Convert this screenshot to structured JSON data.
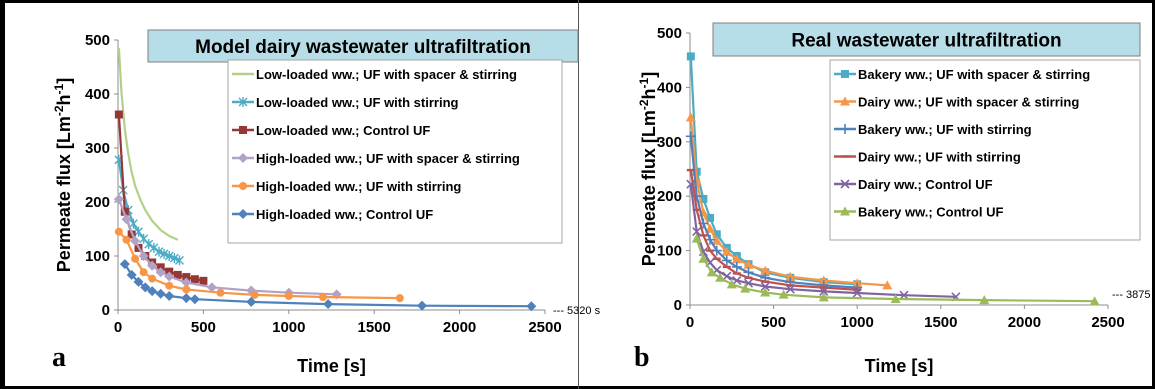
{
  "chart_data": [
    {
      "type": "line",
      "panel_letter": "a",
      "title": "Model dairy wastewater ultrafiltration",
      "xlabel": "Time [s]",
      "ylabel": "Permeate flux [Lm-2h-1]",
      "xlim": [
        0,
        2500
      ],
      "ylim": [
        0,
        500
      ],
      "xticks": [
        "0",
        "500",
        "1000",
        "1500",
        "2000",
        "2500"
      ],
      "yticks": [
        "0",
        "100",
        "200",
        "300",
        "400",
        "500"
      ],
      "annotation": "--- 5320 s",
      "legend_position": "top-right",
      "grid": false,
      "series": [
        {
          "name": "Low-loaded ww.; UF with spacer & stirring",
          "color": "#b2d08a",
          "marker": "none",
          "x": [
            5,
            20,
            40,
            60,
            80,
            100,
            130,
            160,
            200,
            250,
            300,
            350
          ],
          "y": [
            485,
            405,
            335,
            290,
            255,
            230,
            205,
            185,
            165,
            148,
            137,
            130
          ]
        },
        {
          "name": "Low-loaded ww.; UF with stirring",
          "color": "#4bacc6",
          "marker": "asterisk",
          "x": [
            5,
            30,
            60,
            90,
            120,
            150,
            180,
            210,
            240,
            270,
            300,
            330,
            360
          ],
          "y": [
            278,
            222,
            185,
            160,
            145,
            132,
            122,
            115,
            108,
            104,
            100,
            96,
            92
          ]
        },
        {
          "name": "Low-loaded ww.; Control UF",
          "color": "#953735",
          "marker": "square",
          "x": [
            5,
            40,
            80,
            120,
            160,
            200,
            250,
            300,
            350,
            400,
            450,
            500
          ],
          "y": [
            362,
            182,
            140,
            115,
            100,
            88,
            79,
            71,
            65,
            61,
            57,
            54
          ]
        },
        {
          "name": "High-loaded ww.; UF with spacer & stirring",
          "color": "#b3a2c7",
          "marker": "diamond",
          "x": [
            5,
            50,
            100,
            150,
            200,
            250,
            300,
            400,
            550,
            780,
            1000,
            1280
          ],
          "y": [
            205,
            168,
            128,
            100,
            82,
            70,
            62,
            51,
            42,
            36,
            32,
            29
          ]
        },
        {
          "name": "High-loaded ww.; UF with stirring",
          "color": "#f79646",
          "marker": "circle",
          "x": [
            5,
            50,
            100,
            150,
            200,
            300,
            400,
            600,
            800,
            1000,
            1200,
            1650
          ],
          "y": [
            145,
            130,
            95,
            70,
            58,
            45,
            38,
            32,
            28,
            26,
            24,
            22
          ]
        },
        {
          "name": "High-loaded ww.; Control UF",
          "color": "#4f81bd",
          "marker": "diamond",
          "x": [
            40,
            80,
            120,
            160,
            200,
            250,
            300,
            400,
            450,
            780,
            1230,
            1780,
            2420
          ],
          "y": [
            85,
            65,
            52,
            42,
            35,
            30,
            26,
            22,
            20,
            15,
            11,
            8,
            7
          ]
        }
      ]
    },
    {
      "type": "line",
      "panel_letter": "b",
      "title": "Real wastewater ultrafiltration",
      "xlabel": "Time [s]",
      "ylabel": "Permeate flux [Lm-2h-1]",
      "xlim": [
        0,
        2500
      ],
      "ylim": [
        0,
        500
      ],
      "xticks": [
        "0",
        "500",
        "1000",
        "1500",
        "2000",
        "2500"
      ],
      "yticks": [
        "0",
        "100",
        "200",
        "300",
        "400",
        "500"
      ],
      "annotation": "--- 3875 s",
      "legend_position": "top-right",
      "grid": false,
      "series": [
        {
          "name": "Bakery ww.; UF with spacer & stirring",
          "color": "#4bacc6",
          "marker": "square",
          "x": [
            5,
            40,
            80,
            120,
            160,
            220,
            280,
            350,
            450,
            600,
            800,
            1000
          ],
          "y": [
            457,
            245,
            195,
            160,
            130,
            105,
            90,
            75,
            60,
            50,
            42,
            38
          ]
        },
        {
          "name": "Dairy ww.; UF with spacer & stirring",
          "color": "#f79646",
          "marker": "triangle",
          "x": [
            5,
            40,
            80,
            120,
            160,
            220,
            280,
            350,
            450,
            600,
            800,
            1000,
            1180
          ],
          "y": [
            345,
            228,
            170,
            140,
            118,
            98,
            84,
            74,
            63,
            52,
            45,
            40,
            36
          ]
        },
        {
          "name": "Bakery ww.; UF with stirring",
          "color": "#4f81bd",
          "marker": "plus",
          "x": [
            5,
            40,
            80,
            120,
            160,
            220,
            280,
            350,
            450,
            600,
            800,
            1000
          ],
          "y": [
            310,
            200,
            150,
            120,
            100,
            82,
            70,
            60,
            50,
            42,
            36,
            32
          ]
        },
        {
          "name": "Dairy ww.; UF with stirring",
          "color": "#c0504d",
          "marker": "dash",
          "x": [
            5,
            40,
            80,
            120,
            160,
            220,
            280,
            350,
            450,
            600,
            800,
            1000
          ],
          "y": [
            248,
            175,
            128,
            100,
            85,
            70,
            58,
            50,
            43,
            36,
            32,
            28
          ]
        },
        {
          "name": "Dairy ww.; Control UF",
          "color": "#8064a2",
          "marker": "x",
          "x": [
            5,
            40,
            80,
            120,
            160,
            220,
            280,
            350,
            450,
            600,
            800,
            1000,
            1280,
            1590
          ],
          "y": [
            222,
            135,
            98,
            78,
            64,
            53,
            45,
            40,
            34,
            29,
            25,
            22,
            18,
            15
          ]
        },
        {
          "name": "Bakery ww.; Control UF",
          "color": "#9bbb59",
          "marker": "triangle",
          "x": [
            40,
            80,
            130,
            180,
            250,
            330,
            450,
            560,
            800,
            1230,
            1760,
            2420
          ],
          "y": [
            122,
            85,
            60,
            50,
            38,
            30,
            23,
            19,
            14,
            11,
            9,
            7
          ]
        }
      ]
    }
  ]
}
